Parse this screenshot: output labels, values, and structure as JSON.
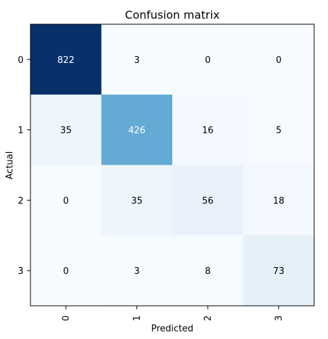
{
  "chart_data": {
    "type": "heatmap",
    "title": "Confusion matrix",
    "xlabel": "Predicted",
    "ylabel": "Actual",
    "x_tick_labels": [
      "0",
      "1",
      "2",
      "3"
    ],
    "y_tick_labels": [
      "0",
      "1",
      "2",
      "3"
    ],
    "matrix": [
      [
        822,
        3,
        0,
        0
      ],
      [
        35,
        426,
        16,
        5
      ],
      [
        0,
        35,
        56,
        18
      ],
      [
        0,
        3,
        8,
        73
      ]
    ],
    "colormap": "Blues",
    "color_range": [
      0,
      822
    ],
    "colors": {
      "low": "#f7fbff",
      "mid": "#6baed6",
      "high": "#08306b",
      "text_dark": "#000000",
      "text_light": "#ffffff",
      "axes": "#000000"
    },
    "grid": false,
    "legend": "none",
    "x_tick_rotation": "vertical"
  }
}
